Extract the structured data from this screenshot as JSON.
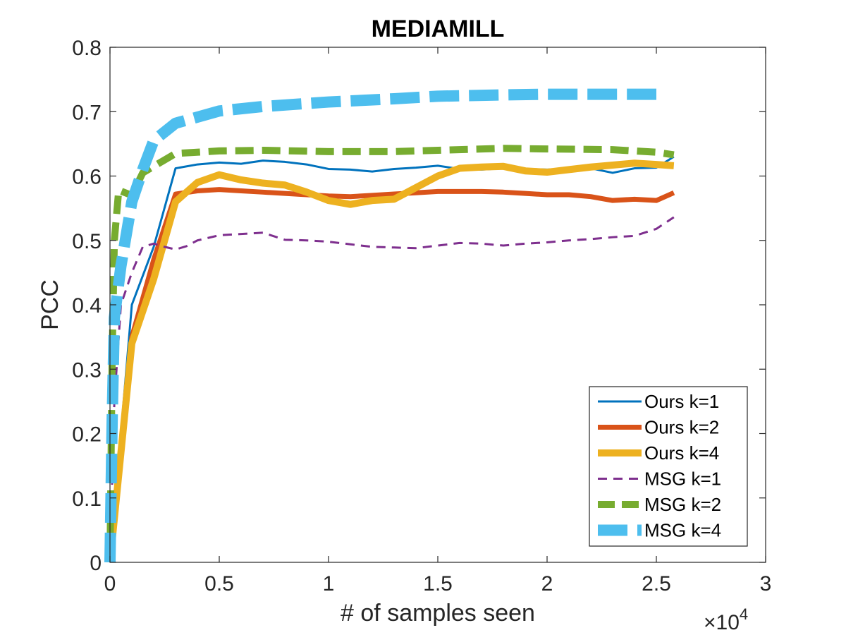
{
  "chart_data": {
    "type": "line",
    "title": "MEDIAMILL",
    "xlabel": "# of samples seen",
    "ylabel": "PCC",
    "x_multiplier": "×10",
    "x_multiplier_exp": "4",
    "xlim": [
      0,
      3
    ],
    "ylim": [
      0,
      0.8
    ],
    "x_ticks": [
      0,
      0.5,
      1,
      1.5,
      2,
      2.5,
      3
    ],
    "x_tick_labels": [
      "0",
      "0.5",
      "1",
      "1.5",
      "2",
      "2.5",
      "3"
    ],
    "y_ticks": [
      0,
      0.1,
      0.2,
      0.3,
      0.4,
      0.5,
      0.6,
      0.7,
      0.8
    ],
    "y_tick_labels": [
      "0",
      "0.1",
      "0.2",
      "0.3",
      "0.4",
      "0.5",
      "0.6",
      "0.7",
      "0.8"
    ],
    "grid": false,
    "legend_position": "bottom-right",
    "series": [
      {
        "name": "Ours k=1",
        "color": "#0072BD",
        "style": "solid",
        "weight": "thin",
        "points": [
          [
            0.0,
            0.0
          ],
          [
            0.1,
            0.4
          ],
          [
            0.2,
            0.49
          ],
          [
            0.3,
            0.612
          ],
          [
            0.4,
            0.618
          ],
          [
            0.5,
            0.621
          ],
          [
            0.6,
            0.619
          ],
          [
            0.7,
            0.624
          ],
          [
            0.8,
            0.622
          ],
          [
            0.9,
            0.618
          ],
          [
            1.0,
            0.611
          ],
          [
            1.1,
            0.61
          ],
          [
            1.2,
            0.607
          ],
          [
            1.3,
            0.611
          ],
          [
            1.4,
            0.613
          ],
          [
            1.5,
            0.616
          ],
          [
            1.6,
            0.611
          ],
          [
            1.7,
            0.61
          ],
          [
            1.8,
            0.612
          ],
          [
            1.9,
            0.611
          ],
          [
            2.0,
            0.61
          ],
          [
            2.1,
            0.611
          ],
          [
            2.2,
            0.612
          ],
          [
            2.3,
            0.605
          ],
          [
            2.4,
            0.612
          ],
          [
            2.5,
            0.613
          ],
          [
            2.58,
            0.63
          ]
        ]
      },
      {
        "name": "Ours k=2",
        "color": "#D95319",
        "style": "solid",
        "weight": "medium",
        "points": [
          [
            0.0,
            0.0
          ],
          [
            0.1,
            0.35
          ],
          [
            0.2,
            0.47
          ],
          [
            0.3,
            0.572
          ],
          [
            0.4,
            0.577
          ],
          [
            0.5,
            0.579
          ],
          [
            0.6,
            0.577
          ],
          [
            0.7,
            0.575
          ],
          [
            0.8,
            0.573
          ],
          [
            0.9,
            0.571
          ],
          [
            1.0,
            0.569
          ],
          [
            1.1,
            0.568
          ],
          [
            1.2,
            0.57
          ],
          [
            1.3,
            0.572
          ],
          [
            1.4,
            0.574
          ],
          [
            1.5,
            0.576
          ],
          [
            1.6,
            0.576
          ],
          [
            1.7,
            0.576
          ],
          [
            1.8,
            0.575
          ],
          [
            1.9,
            0.573
          ],
          [
            2.0,
            0.571
          ],
          [
            2.1,
            0.571
          ],
          [
            2.2,
            0.568
          ],
          [
            2.3,
            0.562
          ],
          [
            2.4,
            0.564
          ],
          [
            2.5,
            0.562
          ],
          [
            2.58,
            0.574
          ]
        ]
      },
      {
        "name": "Ours k=4",
        "color": "#EDB120",
        "style": "solid",
        "weight": "thick",
        "points": [
          [
            0.0,
            0.0
          ],
          [
            0.1,
            0.34
          ],
          [
            0.2,
            0.44
          ],
          [
            0.3,
            0.56
          ],
          [
            0.4,
            0.59
          ],
          [
            0.5,
            0.602
          ],
          [
            0.6,
            0.594
          ],
          [
            0.7,
            0.589
          ],
          [
            0.8,
            0.586
          ],
          [
            0.9,
            0.575
          ],
          [
            1.0,
            0.562
          ],
          [
            1.1,
            0.556
          ],
          [
            1.2,
            0.562
          ],
          [
            1.3,
            0.564
          ],
          [
            1.4,
            0.582
          ],
          [
            1.5,
            0.6
          ],
          [
            1.6,
            0.612
          ],
          [
            1.7,
            0.614
          ],
          [
            1.8,
            0.615
          ],
          [
            1.9,
            0.608
          ],
          [
            2.0,
            0.606
          ],
          [
            2.1,
            0.61
          ],
          [
            2.2,
            0.614
          ],
          [
            2.3,
            0.617
          ],
          [
            2.4,
            0.62
          ],
          [
            2.5,
            0.618
          ],
          [
            2.58,
            0.616
          ]
        ]
      },
      {
        "name": "MSG k=1",
        "color": "#7E2F8E",
        "style": "dashed",
        "weight": "thin",
        "points": [
          [
            0.0,
            0.0
          ],
          [
            0.02,
            0.25
          ],
          [
            0.05,
            0.4
          ],
          [
            0.1,
            0.45
          ],
          [
            0.15,
            0.49
          ],
          [
            0.2,
            0.495
          ],
          [
            0.25,
            0.49
          ],
          [
            0.3,
            0.486
          ],
          [
            0.35,
            0.491
          ],
          [
            0.4,
            0.5
          ],
          [
            0.5,
            0.508
          ],
          [
            0.6,
            0.51
          ],
          [
            0.7,
            0.512
          ],
          [
            0.8,
            0.501
          ],
          [
            0.9,
            0.5
          ],
          [
            1.0,
            0.498
          ],
          [
            1.1,
            0.494
          ],
          [
            1.2,
            0.49
          ],
          [
            1.3,
            0.489
          ],
          [
            1.4,
            0.488
          ],
          [
            1.5,
            0.492
          ],
          [
            1.6,
            0.496
          ],
          [
            1.7,
            0.495
          ],
          [
            1.8,
            0.492
          ],
          [
            1.9,
            0.495
          ],
          [
            2.0,
            0.497
          ],
          [
            2.1,
            0.5
          ],
          [
            2.2,
            0.502
          ],
          [
            2.3,
            0.505
          ],
          [
            2.4,
            0.507
          ],
          [
            2.5,
            0.518
          ],
          [
            2.58,
            0.536
          ]
        ]
      },
      {
        "name": "MSG k=2",
        "color": "#77AC30",
        "style": "dashed",
        "weight": "thick",
        "points": [
          [
            0.0,
            0.0
          ],
          [
            0.01,
            0.32
          ],
          [
            0.02,
            0.5
          ],
          [
            0.04,
            0.578
          ],
          [
            0.1,
            0.57
          ],
          [
            0.15,
            0.605
          ],
          [
            0.2,
            0.615
          ],
          [
            0.25,
            0.625
          ],
          [
            0.3,
            0.635
          ],
          [
            0.5,
            0.639
          ],
          [
            0.7,
            0.64
          ],
          [
            1.0,
            0.638
          ],
          [
            1.3,
            0.638
          ],
          [
            1.5,
            0.64
          ],
          [
            1.8,
            0.643
          ],
          [
            2.0,
            0.642
          ],
          [
            2.3,
            0.641
          ],
          [
            2.5,
            0.637
          ],
          [
            2.58,
            0.633
          ]
        ]
      },
      {
        "name": "MSG k=4",
        "color": "#4DBEEE",
        "style": "dashed",
        "weight": "heavy",
        "points": [
          [
            0.0,
            0.0
          ],
          [
            0.01,
            0.22
          ],
          [
            0.02,
            0.38
          ],
          [
            0.05,
            0.46
          ],
          [
            0.1,
            0.56
          ],
          [
            0.15,
            0.61
          ],
          [
            0.2,
            0.655
          ],
          [
            0.3,
            0.682
          ],
          [
            0.5,
            0.701
          ],
          [
            0.7,
            0.708
          ],
          [
            1.0,
            0.715
          ],
          [
            1.3,
            0.72
          ],
          [
            1.5,
            0.724
          ],
          [
            1.8,
            0.726
          ],
          [
            2.0,
            0.727
          ],
          [
            2.3,
            0.727
          ],
          [
            2.5,
            0.727
          ]
        ]
      }
    ]
  }
}
